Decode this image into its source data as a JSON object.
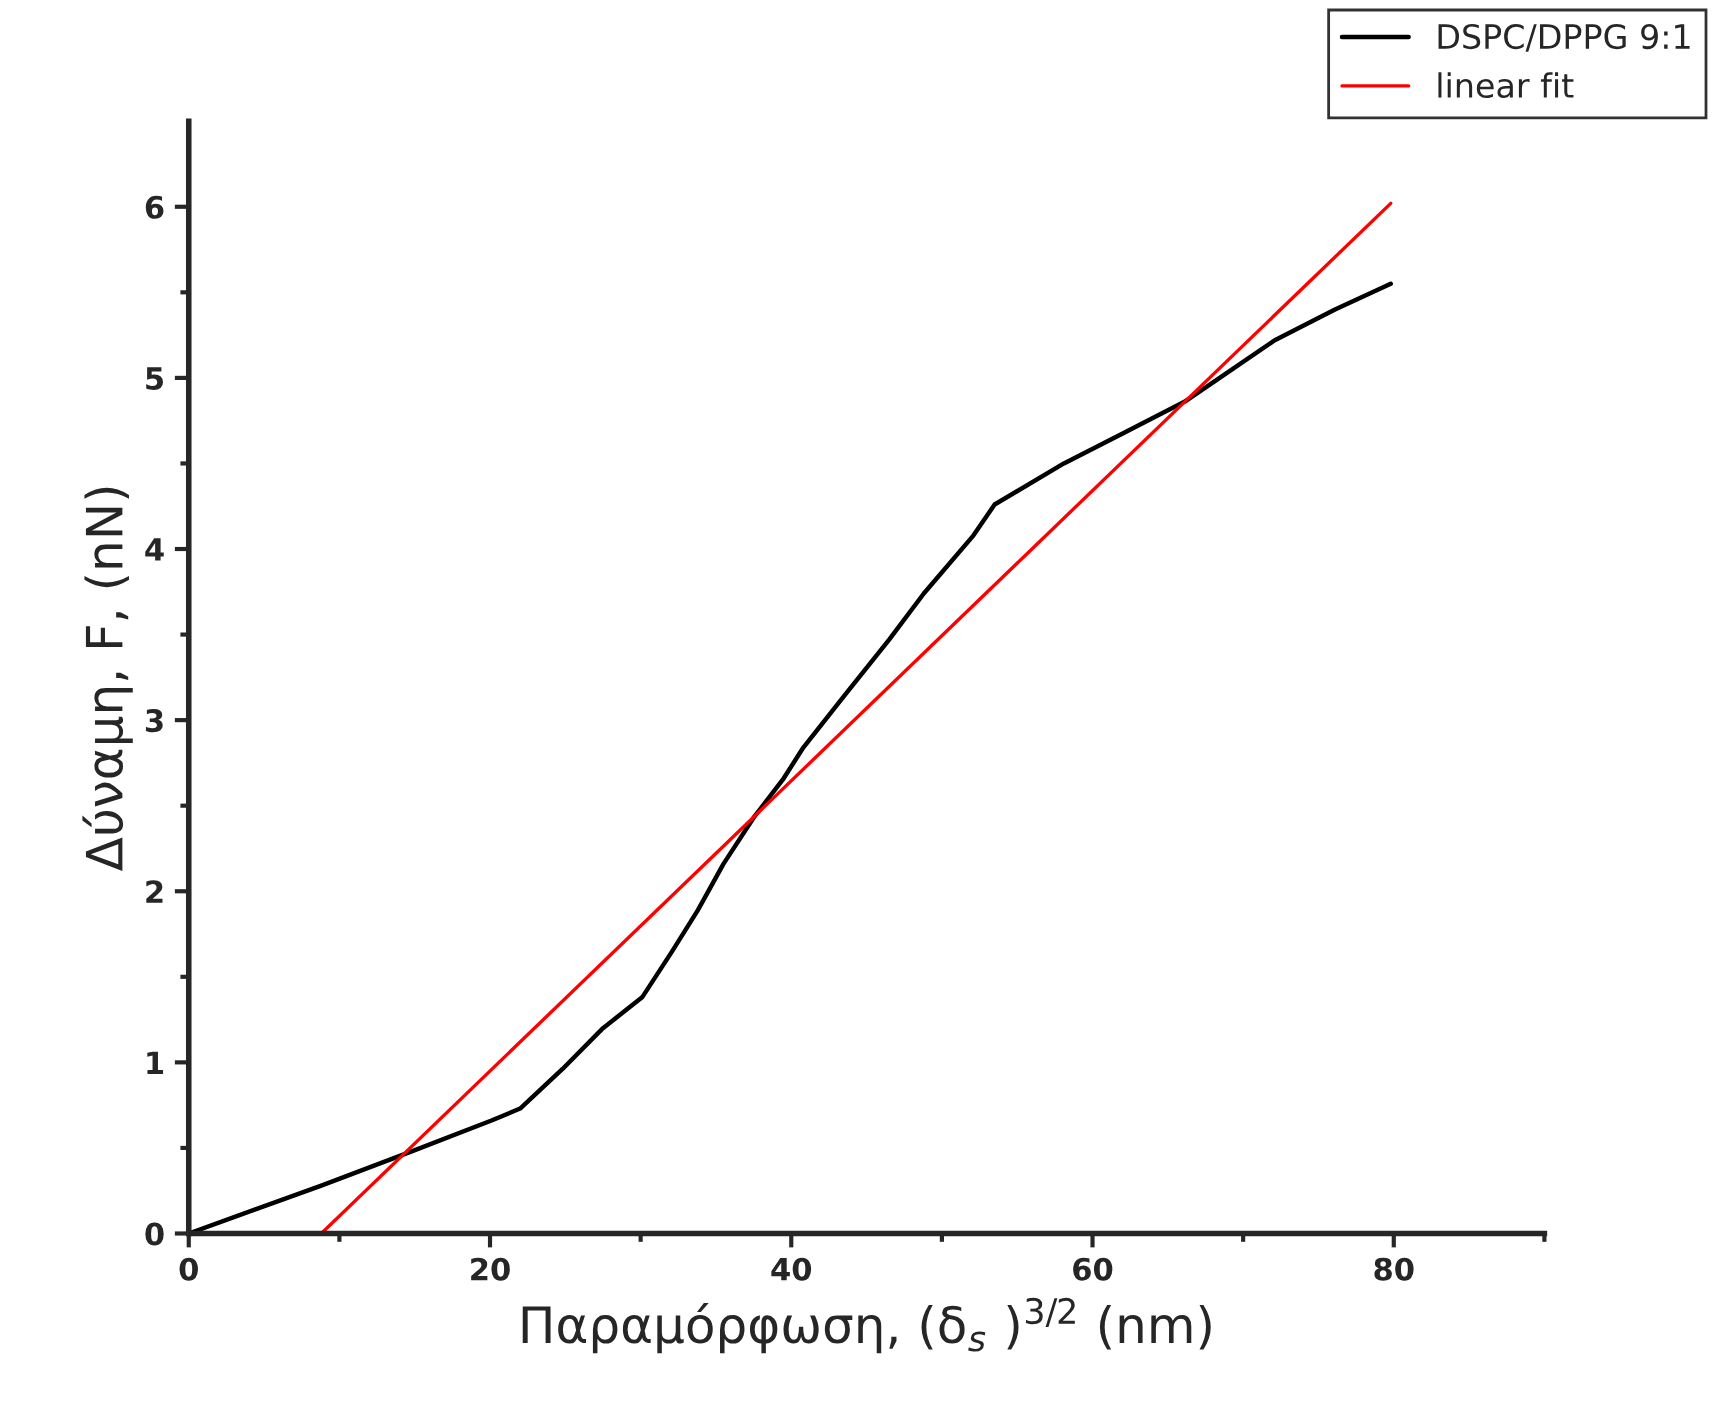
{
  "chart_data": {
    "type": "line",
    "xlabel": "Παραμόρφωση, (δ$_{s}$ )$^{3/2}$ (nm)",
    "ylabel": "Δύναμη, F, (nN)",
    "xlim": [
      0,
      90
    ],
    "xticks": [
      0,
      20,
      40,
      60,
      80
    ],
    "ylim": [
      0,
      6.5
    ],
    "yticks": [
      0,
      1,
      2,
      3,
      4,
      5,
      6
    ],
    "grid": false,
    "legend": "top right",
    "marker": "none",
    "line_style": "solid",
    "series": [
      {
        "name": "DSPC/DPPG 9:1",
        "color": "#000000",
        "x": [
          0,
          8.8,
          14.8,
          20.1,
          22,
          24.8,
          27.5,
          30.1,
          32.1,
          33.8,
          35.5,
          37.5,
          39.5,
          40.8,
          43.5,
          46.5,
          48.8,
          52.1,
          53.5,
          58.1,
          62.1,
          66.1,
          68.1,
          72.1,
          76.1,
          79.8
        ],
        "values": [
          0,
          0.28,
          0.48,
          0.66,
          0.73,
          0.96,
          1.2,
          1.38,
          1.65,
          1.89,
          2.16,
          2.43,
          2.66,
          2.84,
          3.14,
          3.47,
          3.74,
          4.08,
          4.26,
          4.5,
          4.68,
          4.86,
          4.98,
          5.22,
          5.4,
          5.55
        ]
      },
      {
        "name": "linear fit",
        "color": "#ff0000",
        "x": [
          8.8,
          79.8
        ],
        "values": [
          0,
          6.02
        ]
      }
    ]
  }
}
